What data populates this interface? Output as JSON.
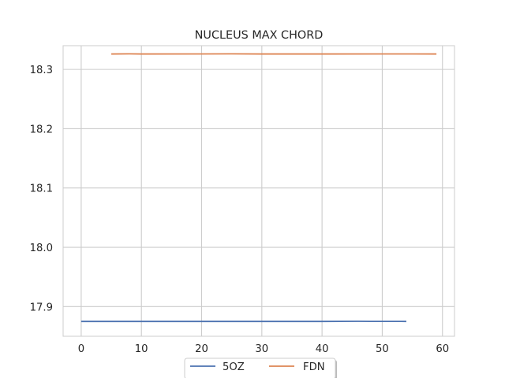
{
  "chart_data": {
    "type": "line",
    "title": "NUCLEUS MAX CHORD",
    "xlabel": "",
    "ylabel": "",
    "xlim": [
      -3,
      62
    ],
    "ylim": [
      17.85,
      18.34
    ],
    "xticks": [
      0,
      10,
      20,
      30,
      40,
      50,
      60
    ],
    "xtick_labels": [
      "0",
      "10",
      "20",
      "30",
      "40",
      "50",
      "60"
    ],
    "yticks": [
      17.9,
      18.0,
      18.1,
      18.2,
      18.3
    ],
    "ytick_labels": [
      "17.9",
      "18.0",
      "18.1",
      "18.2",
      "18.3"
    ],
    "grid": true,
    "legend_position": "bottom-center",
    "series": [
      {
        "name": "5OZ",
        "color": "#4c72b0",
        "x": [
          0,
          10,
          20,
          30,
          40,
          46,
          48,
          54
        ],
        "y": [
          17.875,
          17.875,
          17.875,
          17.875,
          17.875,
          17.8752,
          17.8751,
          17.875
        ]
      },
      {
        "name": "FDN",
        "color": "#dd8452",
        "x": [
          5,
          8,
          10,
          20,
          25,
          30,
          40,
          50,
          55,
          59
        ],
        "y": [
          18.326,
          18.3262,
          18.326,
          18.3261,
          18.3262,
          18.326,
          18.326,
          18.3261,
          18.3261,
          18.326
        ]
      }
    ]
  }
}
